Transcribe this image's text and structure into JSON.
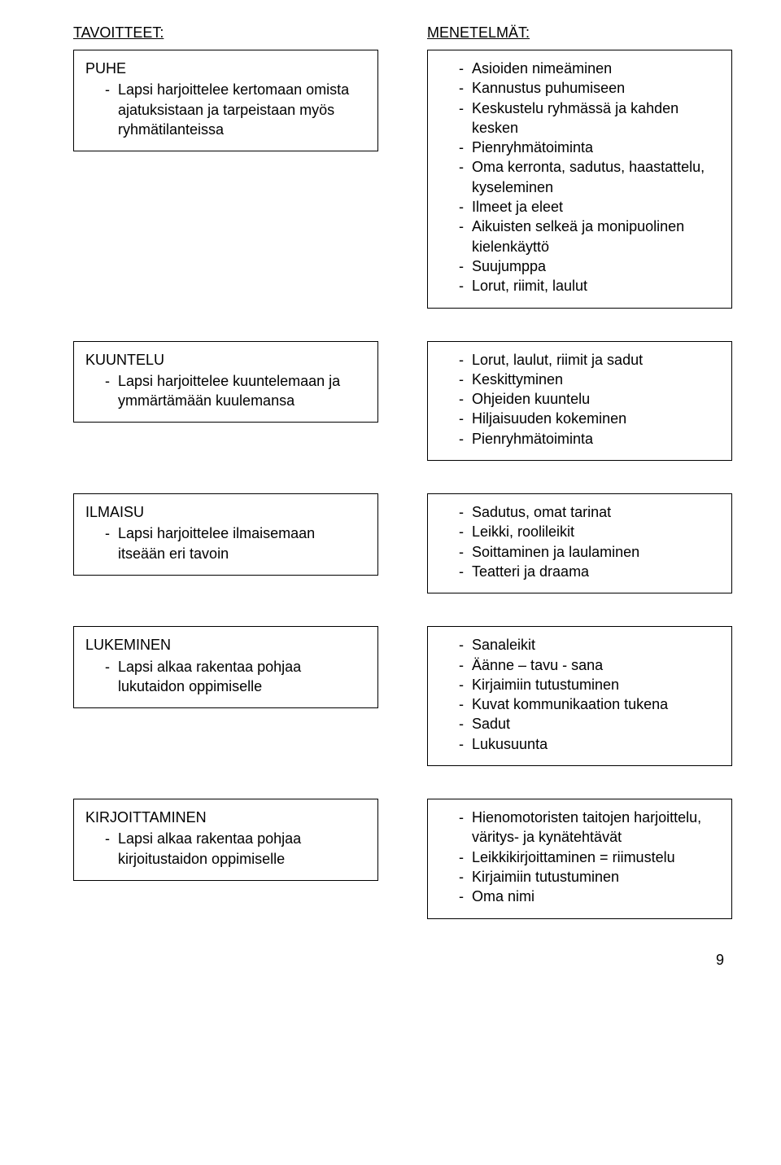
{
  "headers": {
    "left": "TAVOITTEET:",
    "right": "MENETELMÄT:"
  },
  "sections": [
    {
      "goal": {
        "title": "PUHE",
        "items": [
          "Lapsi harjoittelee kertomaan omista ajatuksistaan ja tarpeistaan myös ryhmätilanteissa"
        ]
      },
      "method": {
        "title": "",
        "items": [
          "Asioiden nimeäminen",
          "Kannustus puhumiseen",
          "Keskustelu ryhmässä ja kahden kesken",
          "Pienryhmätoiminta",
          "Oma kerronta, sadutus, haastattelu, kyseleminen",
          "Ilmeet ja eleet",
          "Aikuisten selkeä ja monipuolinen kielenkäyttö",
          "Suujumppa",
          "Lorut, riimit, laulut"
        ]
      }
    },
    {
      "goal": {
        "title": "KUUNTELU",
        "items": [
          "Lapsi harjoittelee kuuntelemaan ja ymmärtämään kuulemansa"
        ]
      },
      "method": {
        "title": "",
        "items": [
          "Lorut, laulut, riimit ja sadut",
          "Keskittyminen",
          "Ohjeiden kuuntelu",
          "Hiljaisuuden kokeminen",
          "Pienryhmätoiminta"
        ]
      }
    },
    {
      "goal": {
        "title": "ILMAISU",
        "items": [
          "Lapsi harjoittelee ilmaisemaan itseään eri tavoin"
        ]
      },
      "method": {
        "title": "",
        "items": [
          "Sadutus, omat tarinat",
          "Leikki, roolileikit",
          "Soittaminen ja laulaminen",
          "Teatteri ja draama"
        ]
      }
    },
    {
      "goal": {
        "title": "LUKEMINEN",
        "items": [
          "Lapsi alkaa rakentaa pohjaa lukutaidon oppimiselle"
        ]
      },
      "method": {
        "title": "",
        "items": [
          "Sanaleikit",
          "Äänne – tavu - sana",
          "Kirjaimiin tutustuminen",
          "Kuvat kommunikaation tukena",
          "Sadut",
          "Lukusuunta"
        ]
      }
    },
    {
      "goal": {
        "title": "KIRJOITTAMINEN",
        "items": [
          "Lapsi alkaa rakentaa pohjaa kirjoitustaidon oppimiselle"
        ]
      },
      "method": {
        "title": "",
        "items": [
          "Hienomotoristen taitojen harjoittelu, väritys- ja kynätehtävät",
          "Leikkikirjoittaminen = riimustelu",
          "Kirjaimiin tutustuminen",
          "Oma nimi"
        ]
      }
    }
  ],
  "page_number": "9"
}
